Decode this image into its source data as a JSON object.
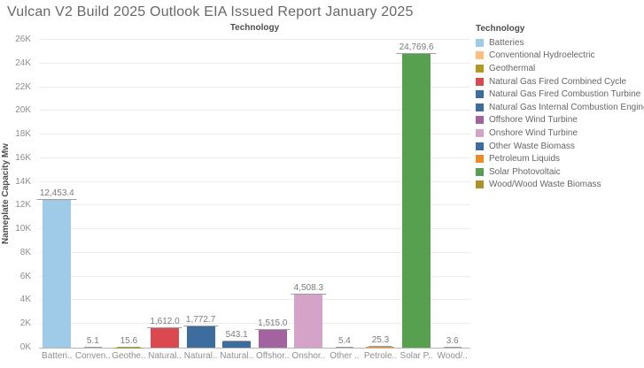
{
  "title": "Vulcan V2 Build 2025 Outlook EIA Issued Report January 2025",
  "legend": {
    "title": "Technology"
  },
  "chart_data": {
    "type": "bar",
    "title": "Vulcan V2 Build 2025 Outlook EIA Issued Report January 2025",
    "xlabel": "Technology",
    "ylabel": "Nameplate Capacity Mw",
    "ylim": [
      0,
      26000
    ],
    "ytick_step": 2000,
    "ytick_labels": [
      "0K",
      "2K",
      "4K",
      "6K",
      "8K",
      "10K",
      "12K",
      "14K",
      "16K",
      "18K",
      "20K",
      "22K",
      "24K",
      "26K"
    ],
    "grid": true,
    "legend_position": "right",
    "categories": [
      "Batteries",
      "Conventional Hydroelectric",
      "Geothermal",
      "Natural Gas Fired Combined Cycle",
      "Natural Gas Fired Combustion Turbine",
      "Natural Gas Internal Combustion Engine",
      "Offshore Wind Turbine",
      "Onshore Wind Turbine",
      "Other Waste Biomass",
      "Petroleum Liquids",
      "Solar Photovoltaic",
      "Wood/Wood Waste Biomass"
    ],
    "categories_truncated": [
      "Batteri..",
      "Conven..",
      "Geothe..",
      "Natural..",
      "Natural..",
      "Natural..",
      "Offshor..",
      "Onshor..",
      "Other ..",
      "Petrole..",
      "Solar P..",
      "Wood/.."
    ],
    "values": [
      12453.4,
      5.1,
      15.6,
      1612.0,
      1772.7,
      543.1,
      1515.0,
      4508.3,
      5.4,
      25.3,
      24769.6,
      3.6
    ],
    "value_labels": [
      "12,453.4",
      "5.1",
      "15.6",
      "1,612.0",
      "1,772.7",
      "543.1",
      "1,515.0",
      "4,508.3",
      "5.4",
      "25.3",
      "24,769.6",
      "3.6"
    ],
    "bar_colors": [
      "#a0cbe8",
      "#ffbe7d",
      "#b29a20",
      "#d9494f",
      "#3d6d9e",
      "#3d6d9e",
      "#a2639e",
      "#d5a2c8",
      "#3d6d9e",
      "#ef8b27",
      "#57a050",
      "#ab9325"
    ]
  }
}
